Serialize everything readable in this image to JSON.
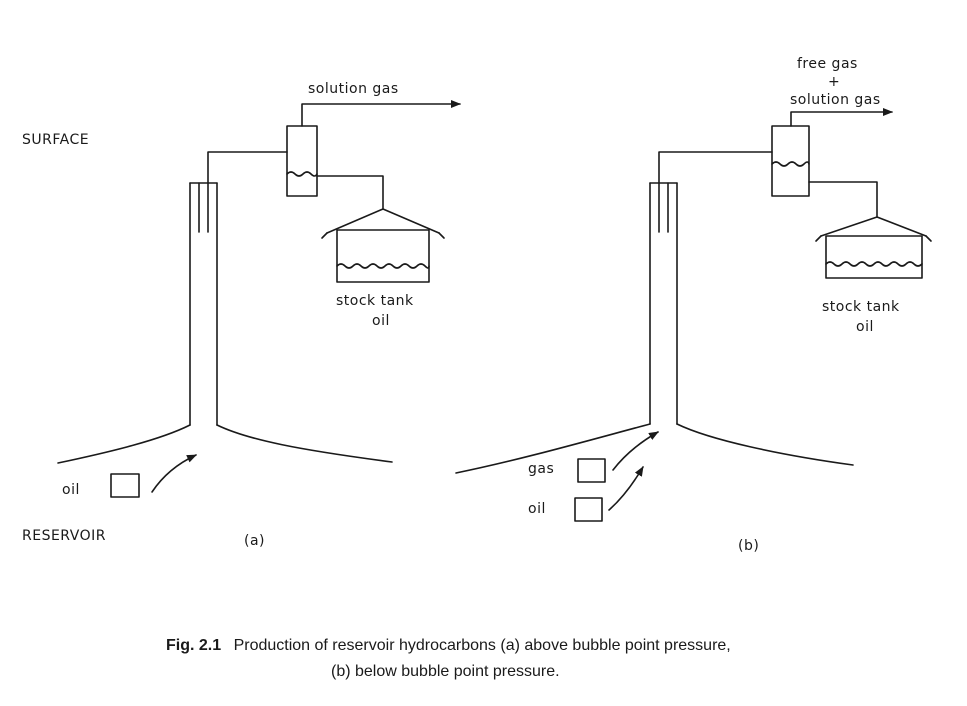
{
  "labels": {
    "surface": "SURFACE",
    "reservoir": "RESERVOIR"
  },
  "panel_a": {
    "tag": "(a)",
    "outflow": "solution gas",
    "tank_line1": "stock tank",
    "tank_line2": "oil",
    "fluid_oil": "oil"
  },
  "panel_b": {
    "tag": "(b)",
    "outflow_line1": "free gas",
    "outflow_plus": "+",
    "outflow_line2": "solution gas",
    "tank_line1": "stock tank",
    "tank_line2": "oil",
    "fluid_gas": "gas",
    "fluid_oil": "oil"
  },
  "caption": {
    "bold": "Fig. 2.1",
    "line1": "Production of reservoir hydrocarbons (a) above bubble point pressure,",
    "line2": "(b) below bubble point pressure."
  }
}
